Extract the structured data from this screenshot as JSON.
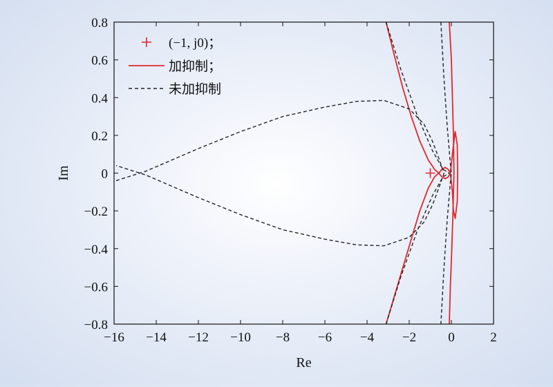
{
  "chart_data": {
    "type": "line",
    "xlabel": "Re",
    "ylabel": "Im",
    "xlim": [
      -16,
      2
    ],
    "ylim": [
      -0.8,
      0.8
    ],
    "x_ticks": [
      -16,
      -14,
      -12,
      -10,
      -8,
      -6,
      -4,
      -2,
      0,
      2
    ],
    "y_ticks": [
      -0.8,
      -0.6,
      -0.4,
      -0.2,
      0,
      0.2,
      0.4,
      0.6,
      0.8
    ],
    "x_tick_labels": [
      "−16",
      "−14",
      "−12",
      "−10",
      "−8",
      "−6",
      "−4",
      "−2",
      "0",
      "2"
    ],
    "y_tick_labels": [
      "−0.8",
      "−0.6",
      "−0.4",
      "−0.2",
      "0",
      "0.2",
      "0.4",
      "0.6",
      "0.8"
    ],
    "grid": false,
    "legend_position": "top-left",
    "point": {
      "name": "(−1, j0)；",
      "x": -1,
      "y": 0,
      "color": "#e0262b"
    },
    "series": [
      {
        "name": "加抑制；",
        "style": "solid",
        "color": "#e0262b",
        "segments": [
          [
            [
              -3.1,
              0.8
            ],
            [
              -2.7,
              0.62
            ],
            [
              -2.3,
              0.45
            ],
            [
              -1.9,
              0.3
            ],
            [
              -1.5,
              0.17
            ],
            [
              -1.1,
              0.07
            ],
            [
              -0.8,
              0.02
            ],
            [
              -0.6,
              0.0
            ],
            [
              -0.45,
              0.02
            ],
            [
              -0.3,
              0.03
            ],
            [
              -0.15,
              0.02
            ],
            [
              -0.05,
              0.0
            ],
            [
              0.05,
              0.1
            ],
            [
              0.18,
              0.22
            ],
            [
              0.28,
              0.15
            ],
            [
              0.3,
              0.0
            ],
            [
              0.28,
              -0.15
            ],
            [
              0.18,
              -0.24
            ],
            [
              0.1,
              -0.2
            ],
            [
              0.05,
              -0.1
            ],
            [
              -0.05,
              0.0
            ],
            [
              -0.15,
              -0.02
            ],
            [
              -0.3,
              -0.03
            ],
            [
              -0.45,
              -0.02
            ],
            [
              -0.6,
              0.0
            ],
            [
              -0.8,
              -0.02
            ],
            [
              -1.1,
              -0.08
            ],
            [
              -1.5,
              -0.2
            ],
            [
              -1.9,
              -0.35
            ],
            [
              -2.3,
              -0.5
            ],
            [
              -2.7,
              -0.65
            ],
            [
              -3.1,
              -0.8
            ]
          ],
          [
            [
              -0.1,
              0.8
            ],
            [
              0.0,
              0.6
            ],
            [
              0.05,
              0.4
            ],
            [
              0.1,
              0.2
            ],
            [
              0.12,
              0.0
            ],
            [
              0.08,
              -0.2
            ],
            [
              0.02,
              -0.4
            ],
            [
              -0.05,
              -0.6
            ],
            [
              -0.1,
              -0.8
            ]
          ]
        ]
      },
      {
        "name": "未加抑制",
        "style": "dashed",
        "color": "#222222",
        "segments": [
          [
            [
              -15.9,
              -0.04
            ],
            [
              -14.5,
              0.01
            ],
            [
              -12,
              0.13
            ],
            [
              -10,
              0.22
            ],
            [
              -8,
              0.3
            ],
            [
              -6,
              0.35
            ],
            [
              -4.5,
              0.38
            ],
            [
              -3.2,
              0.385
            ],
            [
              -2,
              0.34
            ],
            [
              -1.3,
              0.26
            ],
            [
              -0.9,
              0.17
            ],
            [
              -0.6,
              0.08
            ],
            [
              -0.35,
              0.0
            ],
            [
              -0.6,
              -0.08
            ],
            [
              -0.9,
              -0.17
            ],
            [
              -1.3,
              -0.26
            ],
            [
              -2,
              -0.34
            ],
            [
              -3.2,
              -0.385
            ],
            [
              -4.5,
              -0.38
            ],
            [
              -6,
              -0.35
            ],
            [
              -8,
              -0.3
            ],
            [
              -10,
              -0.22
            ],
            [
              -12,
              -0.13
            ],
            [
              -14.5,
              -0.01
            ],
            [
              -15.9,
              0.04
            ]
          ],
          [
            [
              -0.5,
              0.8
            ],
            [
              -0.35,
              0.5
            ],
            [
              -0.2,
              0.25
            ],
            [
              -0.05,
              0.05
            ],
            [
              0.0,
              0.0
            ],
            [
              -0.05,
              -0.05
            ],
            [
              -0.2,
              -0.25
            ],
            [
              -0.35,
              -0.5
            ],
            [
              -0.5,
              -0.8
            ]
          ],
          [
            [
              -3.1,
              0.8
            ],
            [
              -2.4,
              0.55
            ],
            [
              -1.6,
              0.3
            ],
            [
              -0.9,
              0.12
            ],
            [
              -0.4,
              0.02
            ],
            [
              -0.1,
              0.0
            ]
          ],
          [
            [
              -3.1,
              -0.8
            ],
            [
              -2.4,
              -0.55
            ],
            [
              -1.6,
              -0.3
            ],
            [
              -0.9,
              -0.12
            ],
            [
              -0.4,
              -0.02
            ],
            [
              -0.1,
              0.0
            ]
          ]
        ]
      }
    ]
  }
}
